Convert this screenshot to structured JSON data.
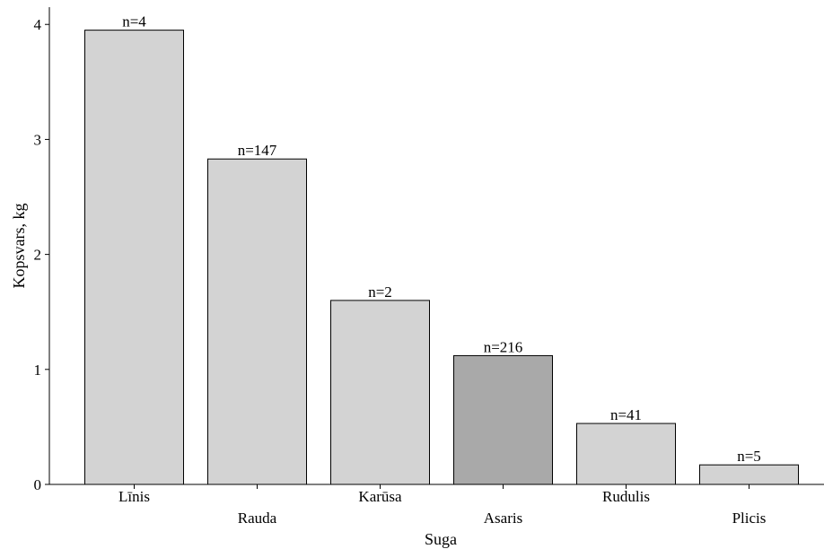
{
  "chart_data": {
    "type": "bar",
    "categories": [
      "Līnis",
      "Rauda",
      "Karūsa",
      "Asaris",
      "Rudulis",
      "Plicis"
    ],
    "values": [
      3.95,
      2.83,
      1.6,
      1.12,
      0.53,
      0.17
    ],
    "data_labels": [
      "n=4",
      "n=147",
      "n=2",
      "n=216",
      "n=41",
      "n=5"
    ],
    "bar_colors": [
      "#d3d3d3",
      "#d3d3d3",
      "#d3d3d3",
      "#a9a9a9",
      "#d3d3d3",
      "#d3d3d3"
    ],
    "xlabel": "Suga",
    "ylabel": "Kopsvars, kg",
    "ylim": [
      0,
      4.15
    ],
    "yticks": [
      0,
      1,
      2,
      3,
      4
    ],
    "grid": false,
    "legend": "none"
  }
}
